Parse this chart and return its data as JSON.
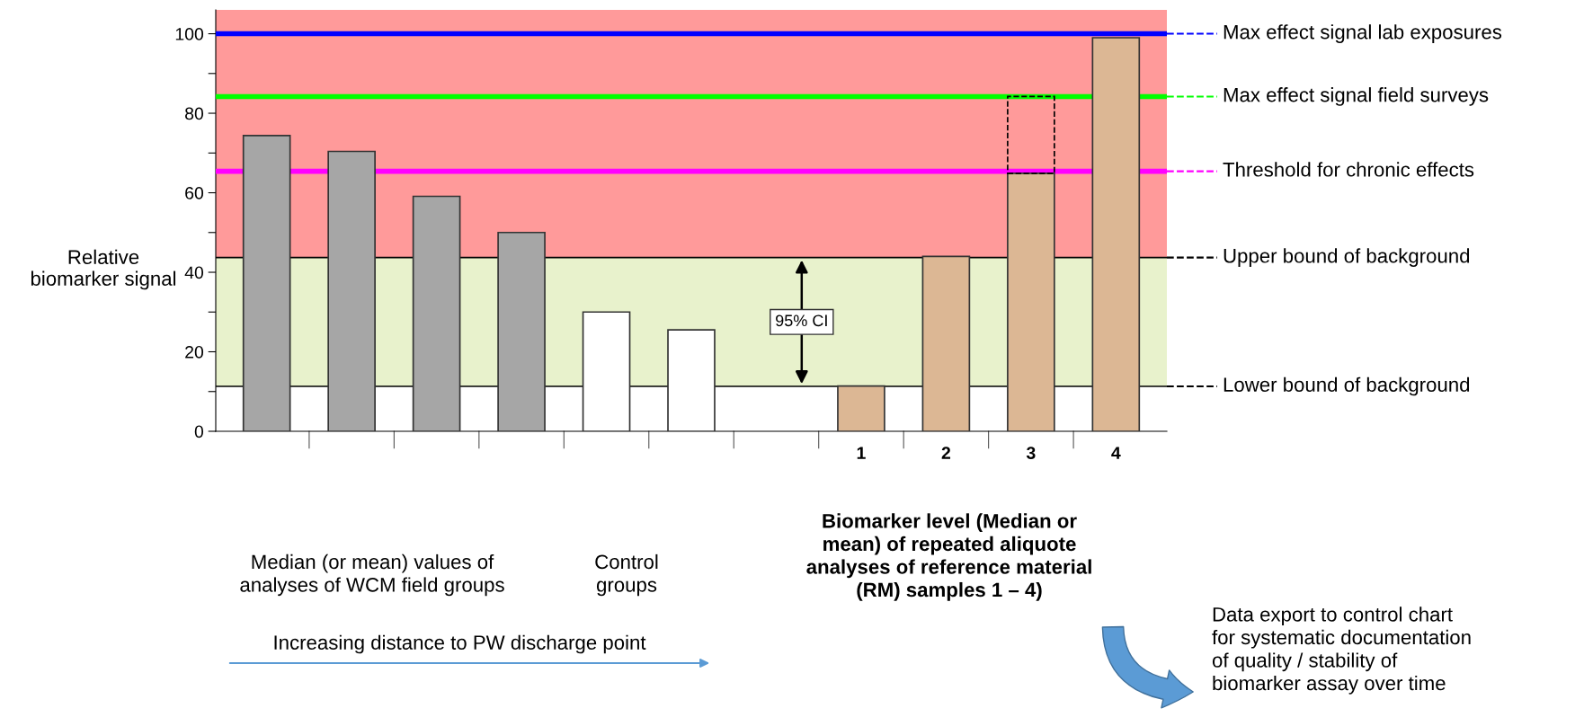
{
  "chart_data": {
    "type": "bar",
    "stacked": true,
    "ylabel": "Relative biomarker signal",
    "categories": [
      null,
      null,
      null,
      null,
      null,
      null,
      null,
      "1",
      "2",
      "3",
      "4"
    ],
    "series": [
      {
        "colors": [
          "#a6a6a6",
          "#a6a6a6",
          "#a6a6a6",
          "#a6a6a6",
          "#ffffff",
          "#ffffff",
          "#ffffff",
          "#dcb794",
          "#dcb794",
          "#dcb794",
          "#dcb794"
        ],
        "values": [
          74.4,
          70.4,
          59.1,
          50,
          30,
          25.5,
          null,
          11.4,
          44,
          64.9,
          99
        ]
      },
      {
        "color": "#000000",
        "line_style": "dashed",
        "values": [
          null,
          null,
          null,
          null,
          null,
          null,
          null,
          null,
          null,
          19.3,
          null
        ]
      }
    ],
    "ylim": [
      0,
      106
    ],
    "yticks": [
      0,
      {
        "value": 10,
        "label": null
      },
      20,
      {
        "value": 30,
        "label": null
      },
      40,
      {
        "value": 50,
        "label": null
      },
      60,
      {
        "value": 70,
        "label": null
      },
      80,
      {
        "value": 90,
        "label": null
      },
      100
    ],
    "bands": [
      {
        "axis": "y",
        "from": 43.7,
        "to": 106,
        "color": "#ff9a9a"
      },
      {
        "axis": "y",
        "from": 11.3,
        "to": 43.7,
        "color": "#e8f2cc"
      }
    ],
    "ref_lines": [
      {
        "axis": "y",
        "value": 100,
        "label": "Max effect signal lab exposures",
        "color": "#0000ff"
      },
      {
        "axis": "y",
        "value": 84.2,
        "label": "Max effect signal field surveys",
        "color": "#00ff00"
      },
      {
        "axis": "y",
        "value": 65.4,
        "label": "Threshold for chronic effects",
        "color": "#ff00ff"
      },
      {
        "axis": "y",
        "value": 43.7,
        "label": "Upper bound of background",
        "color": "#000000"
      },
      {
        "axis": "y",
        "value": 11.3,
        "label": "Lower bound of background",
        "color": "#000000"
      }
    ],
    "annotations": [
      "95% CI",
      "Median (or mean) values of\nanalyses of WCM field groups",
      "Control\ngroups",
      "Biomarker level (Median or\nmean) of repeated aliquote\nanalyses of reference material\n(RM) samples 1 – 4)",
      "Increasing distance to PW discharge point",
      "Data export to control chart\nfor systematic documentation\nof quality / stability of\nbiomarker assay over time"
    ],
    "grid": false,
    "legend": false
  }
}
